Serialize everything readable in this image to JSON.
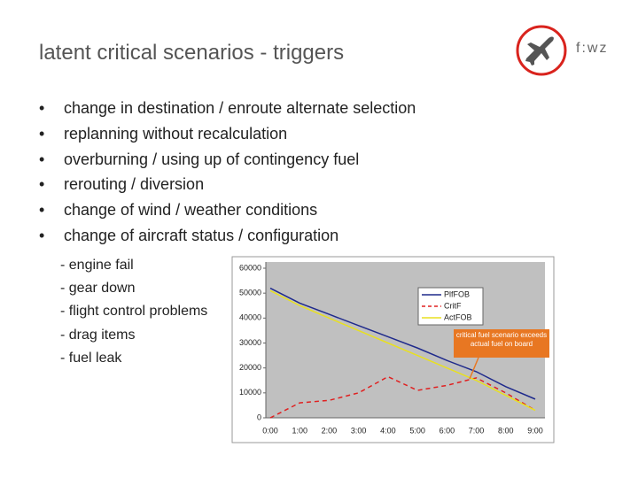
{
  "slide": {
    "title": "latent critical scenarios - triggers",
    "logo": "f:wz",
    "bullets": [
      "change in destination / enroute alternate selection",
      "replanning without recalculation",
      "overburning / using up of contingency fuel",
      "rerouting / diversion",
      "change of wind / weather conditions",
      "change of aircraft status / configuration"
    ],
    "sub_items": [
      "- engine fail",
      "- gear down",
      "- flight control problems",
      "- drag items",
      "- fuel leak"
    ]
  },
  "chart_data": {
    "type": "line",
    "categories": [
      "0:00",
      "1:00",
      "2:00",
      "3:00",
      "4:00",
      "5:00",
      "6:00",
      "7:00",
      "8:00",
      "9:00"
    ],
    "series": [
      {
        "name": "PlfFOB",
        "color": "#1f2a8c",
        "dash": false,
        "values": [
          52000,
          46000,
          41500,
          37000,
          32500,
          28000,
          23000,
          18500,
          12500,
          7500
        ]
      },
      {
        "name": "CritF",
        "color": "#e02020",
        "dash": true,
        "values": [
          0,
          6000,
          7000,
          10000,
          16500,
          11000,
          13000,
          16000,
          10000,
          3000
        ]
      },
      {
        "name": "ActFOB",
        "color": "#e8e020",
        "dash": false,
        "values": [
          51000,
          45000,
          40000,
          35000,
          30000,
          25000,
          20000,
          15000,
          9000,
          3000
        ]
      }
    ],
    "ylim": [
      0,
      60000
    ],
    "yticks": [
      0,
      10000,
      20000,
      30000,
      40000,
      50000,
      60000
    ],
    "annotation": "critical fuel scenario exceeds actual fuel on board"
  }
}
